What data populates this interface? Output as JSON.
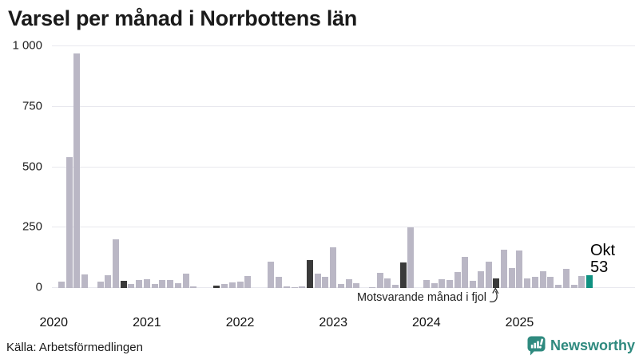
{
  "title": "Varsel per månad i Norrbottens län",
  "chart_data": {
    "type": "bar",
    "title": "Varsel per månad i Norrbottens län",
    "xlabel": "",
    "ylabel": "",
    "ylim": [
      0,
      1000
    ],
    "grid": true,
    "yticks": [
      0,
      250,
      500,
      750,
      1000
    ],
    "ytick_labels": [
      "0",
      "250",
      "500",
      "750",
      "1 000"
    ],
    "year_labels": [
      "2020",
      "2021",
      "2022",
      "2023",
      "2024",
      "2025"
    ],
    "months": [
      "2020-02",
      "2020-03",
      "2020-04",
      "2020-05",
      "2020-06",
      "2020-07",
      "2020-08",
      "2020-09",
      "2020-10",
      "2020-11",
      "2020-12",
      "2021-01",
      "2021-02",
      "2021-03",
      "2021-04",
      "2021-05",
      "2021-06",
      "2021-07",
      "2021-08",
      "2021-09",
      "2021-10",
      "2021-11",
      "2021-12",
      "2022-01",
      "2022-02",
      "2022-03",
      "2022-04",
      "2022-05",
      "2022-06",
      "2022-07",
      "2022-08",
      "2022-09",
      "2022-10",
      "2022-11",
      "2022-12",
      "2023-01",
      "2023-02",
      "2023-03",
      "2023-04",
      "2023-05",
      "2023-06",
      "2023-07",
      "2023-08",
      "2023-09",
      "2023-10",
      "2023-11",
      "2023-12",
      "2024-01",
      "2024-02",
      "2024-03",
      "2024-04",
      "2024-05",
      "2024-06",
      "2024-07",
      "2024-08",
      "2024-09",
      "2024-10",
      "2024-11",
      "2024-12",
      "2025-01",
      "2025-02",
      "2025-03",
      "2025-04",
      "2025-05",
      "2025-06",
      "2025-07",
      "2025-08",
      "2025-09",
      "2025-10"
    ],
    "values": [
      25,
      540,
      970,
      55,
      0,
      27,
      52,
      200,
      30,
      18,
      32,
      36,
      17,
      33,
      33,
      20,
      60,
      7,
      0,
      0,
      10,
      17,
      22,
      27,
      50,
      0,
      0,
      110,
      45,
      8,
      5,
      8,
      115,
      60,
      46,
      170,
      17,
      35,
      20,
      0,
      5,
      62,
      40,
      12,
      105,
      250,
      0,
      33,
      20,
      38,
      33,
      65,
      130,
      29,
      68,
      110,
      40,
      160,
      84,
      155,
      40,
      45,
      68,
      45,
      13,
      80,
      12,
      50,
      53
    ],
    "highlight_dark_indices": [
      8,
      20,
      32,
      44,
      56
    ],
    "highlight_teal_index": 68,
    "colors": {
      "bar_default": "#bab7c5",
      "bar_dark": "#3a3a3a",
      "bar_teal": "#0f9181",
      "gridline": "#e8e8ee",
      "axis_text": "#222222"
    },
    "annotation": {
      "text": "Motsvarande månad i fjol",
      "target_month": "2024-10"
    },
    "end_label": {
      "month": "Okt",
      "value": "53"
    }
  },
  "footer": {
    "source": "Källa: Arbetsförmedlingen",
    "brand": "Newsworthy",
    "brand_color": "#2f8a7f"
  }
}
